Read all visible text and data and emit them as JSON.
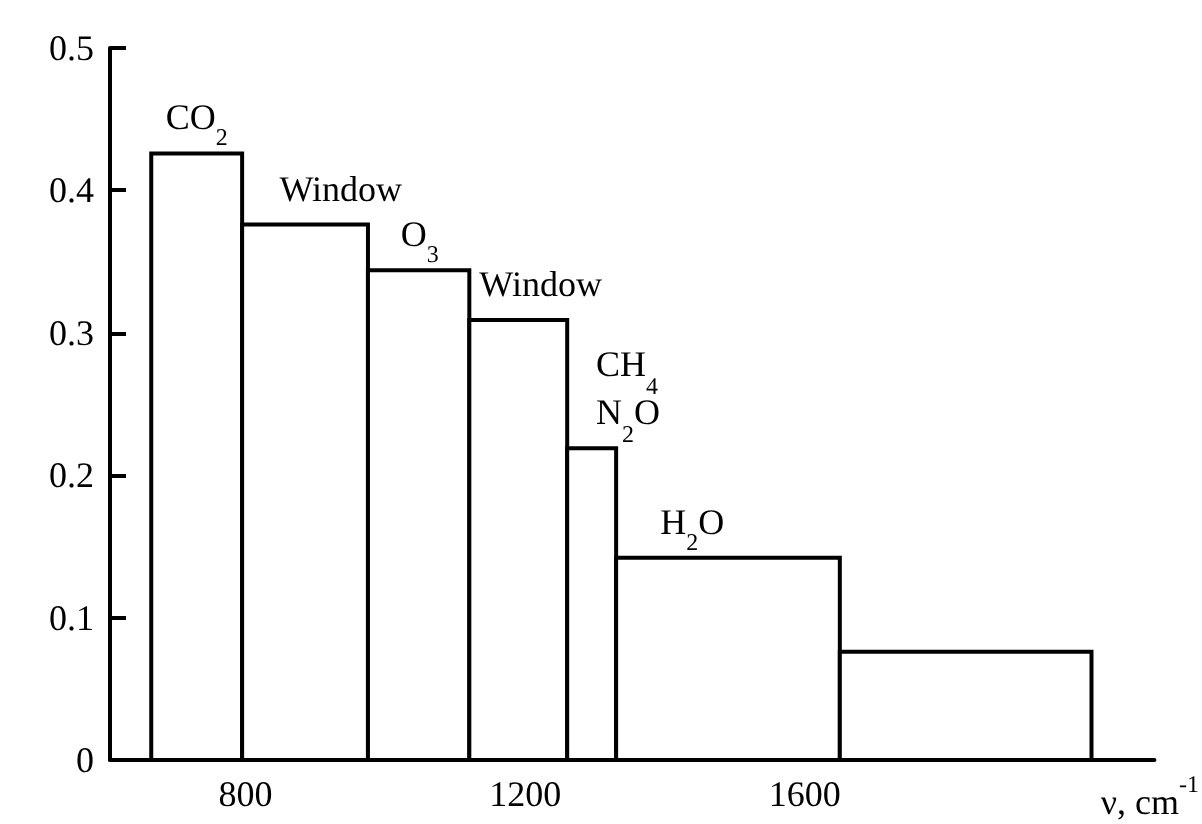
{
  "chart_data": {
    "type": "histogram",
    "bins": [
      665,
      795,
      975,
      1120,
      1260,
      1330,
      1650,
      2010
    ],
    "values": [
      0.426,
      0.376,
      0.344,
      0.309,
      0.219,
      0.142,
      0.076
    ],
    "color": "#000000",
    "xlabel": "ν, cm$^{-1}$",
    "xlim": [
      606,
      2100
    ],
    "xticks": [
      800,
      1200,
      1600,
      {
        "value": 2000,
        "label": null
      }
    ],
    "ylim": [
      0,
      0.5
    ],
    "yticks": [
      0,
      0.1,
      0.2,
      0.3,
      0.4,
      0.5
    ],
    "annotations": [
      {
        "text": "CO$_{2}$",
        "x": 730,
        "y": 0.426
      },
      {
        "text": "Window",
        "x": 936,
        "y": 0.376
      },
      {
        "text": "O$_{3}$",
        "x": 1049,
        "y": 0.344
      },
      {
        "text": "Window",
        "x": 1222,
        "y": 0.309
      },
      "CH$_{4}$\nN$_{2}$O",
      {
        "text": "H$_{2}$O",
        "x": 1439,
        "y": 0.142
      }
    ],
    "grid": false
  }
}
